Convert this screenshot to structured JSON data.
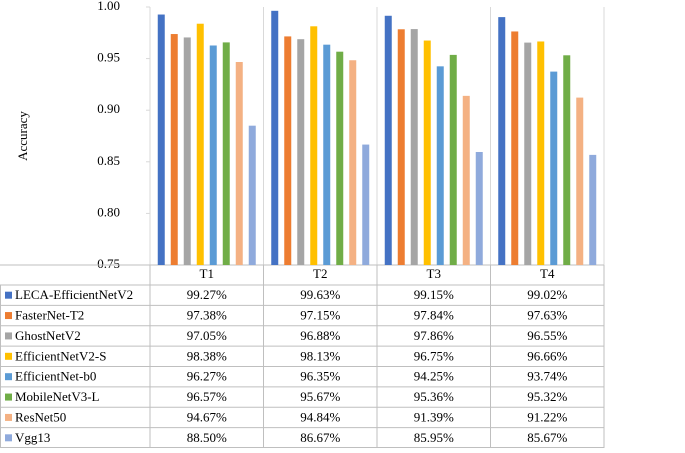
{
  "chart_data": {
    "type": "bar",
    "y_label": "Accuracy",
    "categories": [
      "T1",
      "T2",
      "T3",
      "T4"
    ],
    "ylim": [
      0.75,
      1.0
    ],
    "yticks": [
      0.75,
      {
        "value": 0.8,
        "label": "0.80"
      },
      0.85,
      {
        "value": 0.9,
        "label": "0.90"
      },
      0.95,
      {
        "value": 1.0,
        "label": "1.00"
      }
    ],
    "series": [
      {
        "name": "LECA-EfficientNetV2",
        "color": "#4472c4",
        "values": [
          0.9927,
          0.9963,
          0.9915,
          0.9902
        ],
        "value_labels": [
          "99.27%",
          "99.63%",
          "99.15%",
          "99.02%"
        ]
      },
      {
        "name": "FasterNet-T2",
        "color": "#ed7d31",
        "values": [
          0.9738,
          0.9715,
          0.9784,
          0.9763
        ],
        "value_labels": [
          "97.38%",
          "97.15%",
          "97.84%",
          "97.63%"
        ]
      },
      {
        "name": "GhostNetV2",
        "color": "#a5a5a5",
        "values": [
          0.9705,
          0.9688,
          0.9786,
          0.9655
        ],
        "value_labels": [
          "97.05%",
          "96.88%",
          "97.86%",
          "96.55%"
        ]
      },
      {
        "name": "EfficientNetV2-S",
        "color": "#ffc000",
        "values": [
          0.9838,
          0.9813,
          0.9675,
          0.9666
        ],
        "value_labels": [
          "98.38%",
          "98.13%",
          "96.75%",
          "96.66%"
        ]
      },
      {
        "name": "EfficientNet-b0",
        "color": "#5b9bd5",
        "values": [
          0.9627,
          0.9635,
          0.9425,
          0.9374
        ],
        "value_labels": [
          "96.27%",
          "96.35%",
          "94.25%",
          "93.74%"
        ]
      },
      {
        "name": "MobileNetV3-L",
        "color": "#70ad47",
        "values": [
          0.9657,
          0.9567,
          0.9536,
          0.9532
        ],
        "value_labels": [
          "96.57%",
          "95.67%",
          "95.36%",
          "95.32%"
        ]
      },
      {
        "name": "ResNet50",
        "color": "#f4b183",
        "values": [
          0.9467,
          0.9484,
          0.9139,
          0.9122
        ],
        "value_labels": [
          "94.67%",
          "94.84%",
          "91.39%",
          "91.22%"
        ]
      },
      {
        "name": "Vgg13",
        "color": "#8faadc",
        "values": [
          0.885,
          0.8667,
          0.8595,
          0.8567
        ],
        "value_labels": [
          "88.50%",
          "86.67%",
          "85.95%",
          "85.67%"
        ]
      }
    ]
  }
}
